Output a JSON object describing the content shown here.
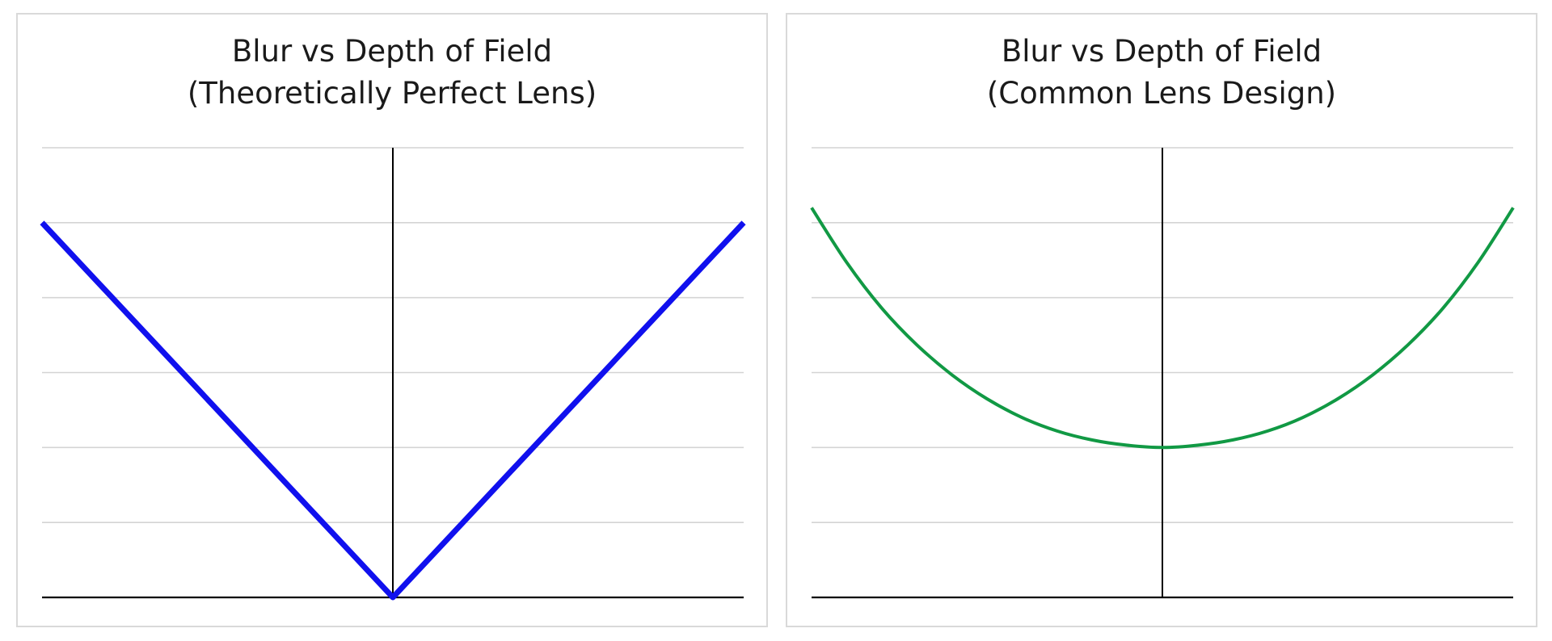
{
  "chart_data": [
    {
      "type": "line",
      "title": "Blur vs Depth of Field",
      "subtitle": "(Theoretically Perfect Lens)",
      "xlabel": "",
      "ylabel": "",
      "xlim": [
        -1,
        1
      ],
      "ylim": [
        0,
        6
      ],
      "grid": true,
      "center_line": true,
      "series": [
        {
          "color": "#1010ee",
          "x": [
            -1,
            0,
            1
          ],
          "y": [
            5,
            0,
            5
          ]
        }
      ]
    },
    {
      "type": "line",
      "title": "Blur vs Depth of Field",
      "subtitle": "(Common Lens Design)",
      "xlabel": "",
      "ylabel": "",
      "xlim": [
        -1,
        1
      ],
      "ylim": [
        0,
        6
      ],
      "grid": true,
      "center_line": true,
      "series": [
        {
          "color": "#119944",
          "x": [
            -1,
            -0.9,
            -0.8,
            -0.7,
            -0.6,
            -0.5,
            -0.4,
            -0.3,
            -0.2,
            -0.1,
            0,
            0.1,
            0.2,
            0.3,
            0.4,
            0.5,
            0.6,
            0.7,
            0.8,
            0.9,
            1
          ],
          "y": [
            5.2,
            4.47,
            3.86,
            3.37,
            2.97,
            2.65,
            2.4,
            2.22,
            2.1,
            2.03,
            2.0,
            2.03,
            2.1,
            2.22,
            2.4,
            2.65,
            2.97,
            3.37,
            3.86,
            4.47,
            5.2
          ]
        }
      ]
    }
  ]
}
